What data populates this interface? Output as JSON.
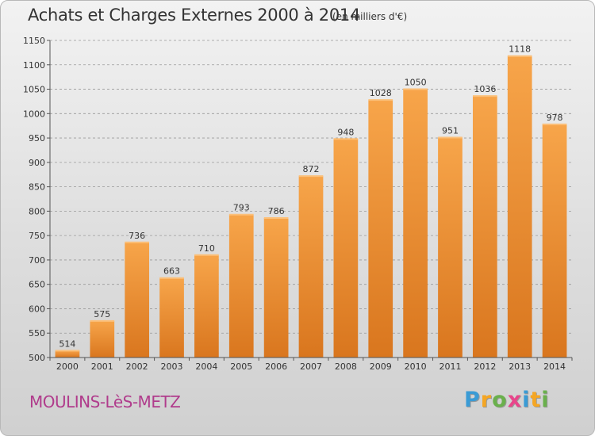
{
  "header": {
    "title": "Achats et Charges Externes 2000 à 2014",
    "subtitle": "(en milliers d'€)"
  },
  "footer": {
    "commune": "MOULINS-LèS-METZ",
    "brand_letters": [
      {
        "char": "P",
        "color": "#3a9bd5"
      },
      {
        "char": "r",
        "color": "#f5a623"
      },
      {
        "char": "o",
        "color": "#6ab04c"
      },
      {
        "char": "x",
        "color": "#e8458b"
      },
      {
        "char": "i",
        "color": "#3a9bd5"
      },
      {
        "char": "t",
        "color": "#f5a623"
      },
      {
        "char": "i",
        "color": "#6ab04c"
      }
    ]
  },
  "colors": {
    "bar_light": "#f7a54a",
    "bar_dark": "#d9761e",
    "axis": "#555555",
    "grid": "#999999"
  },
  "chart_data": {
    "type": "bar",
    "title": "Achats et Charges Externes 2000 à 2014",
    "subtitle": "(en milliers d'€)",
    "xlabel": "",
    "ylabel": "",
    "categories": [
      "2000",
      "2001",
      "2002",
      "2003",
      "2004",
      "2005",
      "2006",
      "2007",
      "2008",
      "2009",
      "2010",
      "2011",
      "2012",
      "2013",
      "2014"
    ],
    "values": [
      514,
      575,
      736,
      663,
      710,
      793,
      786,
      872,
      948,
      1028,
      1050,
      951,
      1036,
      1118,
      978
    ],
    "ylim": [
      500,
      1150
    ],
    "yticks": [
      500,
      550,
      600,
      650,
      700,
      750,
      800,
      850,
      900,
      950,
      1000,
      1050,
      1100,
      1150
    ],
    "grid": "horizontal dashed, every 50"
  }
}
